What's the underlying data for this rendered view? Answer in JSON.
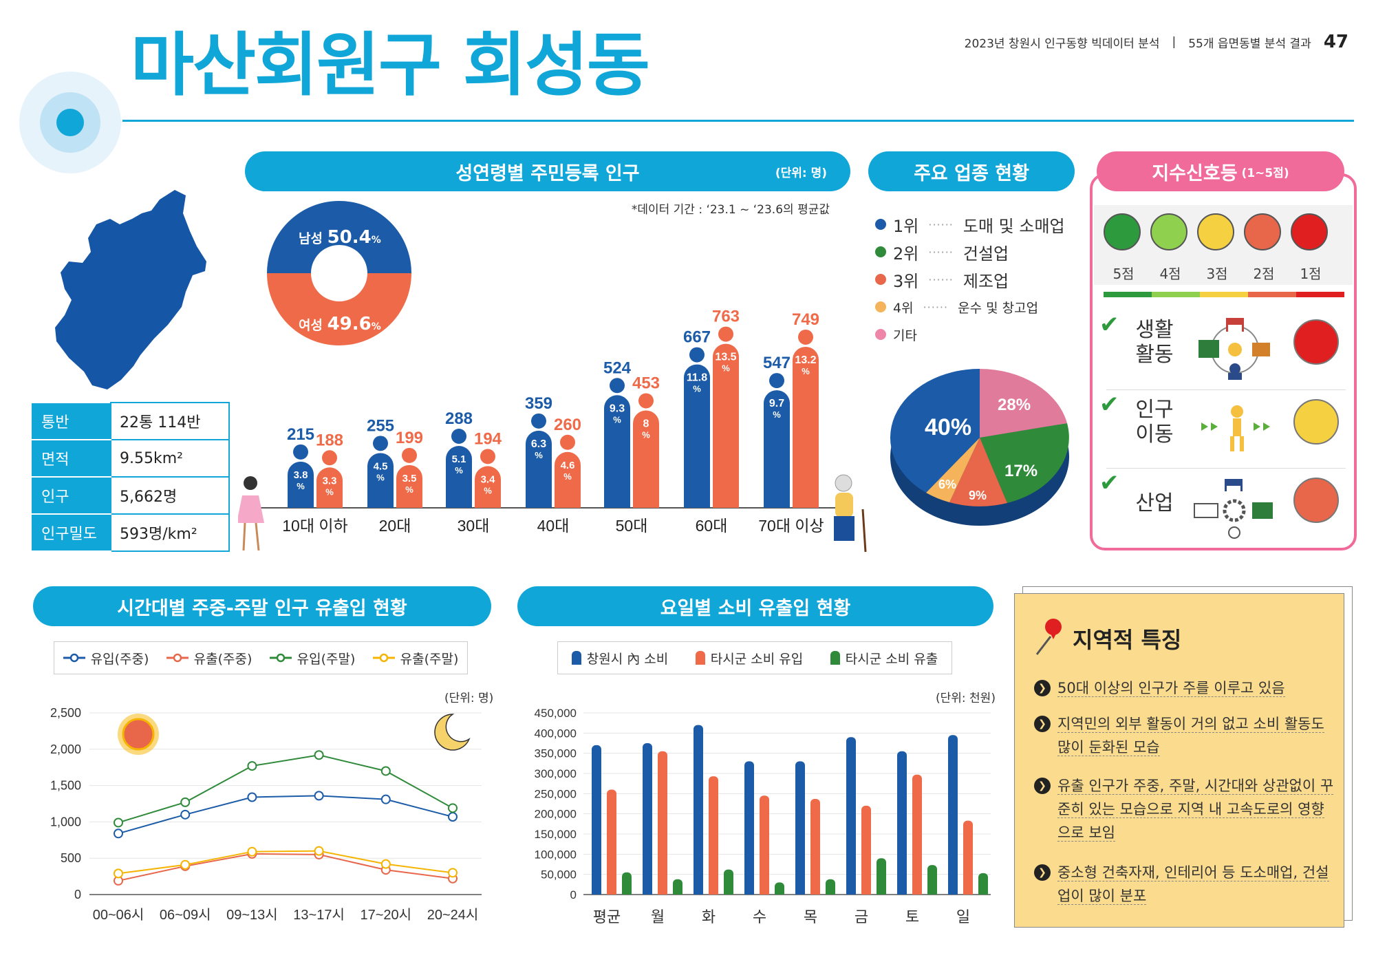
{
  "header": {
    "report_title": "2023년 창원시 인구동향 빅데이터 분석",
    "section": "55개 읍면동별 분석 결과",
    "page_number": "47"
  },
  "page_title": "마산회원구 회성동",
  "info_table": [
    {
      "label": "통반",
      "value": "22통 114반"
    },
    {
      "label": "면적",
      "value": "9.55km²"
    },
    {
      "label": "인구",
      "value": "5,662명"
    },
    {
      "label": "인구밀도",
      "value": "593명/km²"
    }
  ],
  "age_panel": {
    "title": "성연령별 주민등록 인구",
    "unit": "(단위: 명)",
    "note": "*데이터 기간 : ‘23.1 ~ ‘23.6의 평균값",
    "male_label": "남성",
    "male_pct": "50.4",
    "female_label": "여성",
    "female_pct": "49.6",
    "pct_sign": "%"
  },
  "industry_panel": {
    "title": "주요 업종 현황",
    "legend": [
      {
        "rank": "1위",
        "name": "도매 및 소매업",
        "color": "#1b5ba8"
      },
      {
        "rank": "2위",
        "name": "건설업",
        "color": "#2f8a3a"
      },
      {
        "rank": "3위",
        "name": "제조업",
        "color": "#e8664a"
      },
      {
        "rank": "4위",
        "name": "운수 및 창고업",
        "color": "#f5b45c"
      },
      {
        "rank": "기타",
        "name": "",
        "color": "#ee86aa"
      }
    ],
    "pie_labels": [
      "40%",
      "17%",
      "9%",
      "6%",
      "28%"
    ]
  },
  "signal_panel": {
    "title": "지수신호등",
    "title_unit": "(1~5점)",
    "scores": [
      "5점",
      "4점",
      "3점",
      "2점",
      "1점"
    ],
    "score_colors": [
      "#2e9a3e",
      "#8fd14f",
      "#f5d040",
      "#e8664a",
      "#e02020"
    ],
    "rows": [
      {
        "label_line1": "생활",
        "label_line2": "활동",
        "face_color": "#e02020"
      },
      {
        "label_line1": "인구",
        "label_line2": "이동",
        "face_color": "#f5d040"
      },
      {
        "label_line1": "산업",
        "label_line2": "",
        "face_color": "#e8664a"
      }
    ]
  },
  "time_panel": {
    "title": "시간대별 주중-주말 인구 유출입 현황",
    "unit": "(단위: 명)"
  },
  "day_panel": {
    "title": "요일별 소비 유출입 현황",
    "unit": "(단위: 천원)"
  },
  "features": {
    "title": "지역적 특징",
    "items": [
      "50대 이상의 인구가 주를 이루고 있음",
      "지역민의 외부 활동이 거의 없고 소비 활동도 많이 둔화된 모습",
      "유출 인구가 주중, 주말, 시간대와 상관없이 꾸준히 있는 모습으로 지역 내 고속도로의 영향으로 보임",
      "중소형 건축자재, 인테리어 등 도소매업, 건설업이 많이 분포"
    ]
  },
  "chart_data": [
    {
      "type": "bar",
      "categories": [
        "10대 이하",
        "20대",
        "30대",
        "40대",
        "50대",
        "60대",
        "70대 이상"
      ],
      "series": [
        {
          "name": "남성",
          "values": [
            215,
            255,
            288,
            359,
            524,
            667,
            547
          ],
          "pct": [
            "3.8",
            "4.5",
            "5.1",
            "6.3",
            "9.3",
            "11.8",
            "9.7"
          ],
          "color": "#1b5ba8"
        },
        {
          "name": "여성",
          "values": [
            188,
            199,
            194,
            260,
            453,
            763,
            749
          ],
          "pct": [
            "3.3",
            "3.5",
            "3.4",
            "4.6",
            "8",
            "13.5",
            "13.2"
          ],
          "color": "#ef6a48"
        }
      ]
    },
    {
      "type": "pie",
      "categories": [
        "도매 및 소매업",
        "건설업",
        "제조업",
        "운수 및 창고업",
        "기타"
      ],
      "values": [
        40,
        17,
        9,
        6,
        28
      ]
    },
    {
      "type": "pie",
      "categories": [
        "남성",
        "여성"
      ],
      "values": [
        50.4,
        49.6
      ]
    },
    {
      "type": "line",
      "x": [
        "00~06시",
        "06~09시",
        "09~13시",
        "13~17시",
        "17~20시",
        "20~24시"
      ],
      "series": [
        {
          "name": "유입(주중)",
          "values": [
            840,
            1100,
            1340,
            1360,
            1310,
            1070
          ],
          "color": "#1b5ba8"
        },
        {
          "name": "유출(주중)",
          "values": [
            190,
            390,
            560,
            550,
            340,
            220
          ],
          "color": "#e8664a"
        },
        {
          "name": "유입(주말)",
          "values": [
            990,
            1270,
            1770,
            1920,
            1700,
            1190
          ],
          "color": "#2f8a3a"
        },
        {
          "name": "유출(주말)",
          "values": [
            290,
            410,
            590,
            600,
            420,
            300
          ],
          "color": "#f5b400"
        }
      ],
      "ylim": [
        0,
        2500
      ],
      "yticks": [
        "0",
        "500",
        "1,000",
        "1,500",
        "2,000",
        "2,500"
      ]
    },
    {
      "type": "bar",
      "categories": [
        "평균",
        "월",
        "화",
        "수",
        "목",
        "금",
        "토",
        "일"
      ],
      "series": [
        {
          "name": "창원시 內 소비",
          "values": [
            370000,
            375000,
            420000,
            330000,
            330000,
            390000,
            355000,
            395000
          ],
          "color": "#1b5ba8"
        },
        {
          "name": "타시군 소비 유입",
          "values": [
            260000,
            355000,
            293000,
            245000,
            237000,
            220000,
            297000,
            183000
          ],
          "color": "#ef6a48"
        },
        {
          "name": "타시군 소비 유출",
          "values": [
            55000,
            38000,
            62000,
            30000,
            38000,
            90000,
            73000,
            53000
          ],
          "color": "#2f8a3a"
        }
      ],
      "ylim": [
        0,
        450000
      ],
      "yticks": [
        "0",
        "50,000",
        "100,000",
        "150,000",
        "200,000",
        "250,000",
        "300,000",
        "350,000",
        "400,000",
        "450,000"
      ]
    }
  ]
}
